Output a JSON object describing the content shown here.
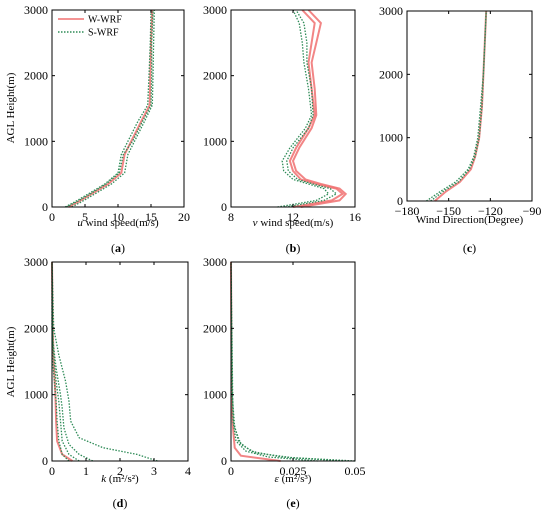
{
  "figure": {
    "legend": [
      {
        "name": "W-WRF",
        "color": "#f07070",
        "style": "solid"
      },
      {
        "name": "S-WRF",
        "color": "#2e8b57",
        "style": "dotted"
      }
    ],
    "ylabel_top": "AGL Height(m)",
    "ylabel_bottom": "AGL Height(m)"
  },
  "chart_data": [
    {
      "type": "line",
      "panel": "(a)",
      "xlabel_italic": "u",
      "xlabel_rest": " wind speed(m/s)",
      "xlim": [
        0,
        20
      ],
      "xticks": [
        "0",
        "5",
        "10",
        "15",
        "20"
      ],
      "ylim": [
        0,
        3000
      ],
      "yticks": [
        "0",
        "1000",
        "2000",
        "3000"
      ],
      "series": [
        {
          "name": "W-WRF",
          "points": [
            [
              2.5,
              0
            ],
            [
              4,
              80
            ],
            [
              6,
              200
            ],
            [
              8.5,
              350
            ],
            [
              10.5,
              520
            ],
            [
              11,
              800
            ],
            [
              12,
              1000
            ],
            [
              13.5,
              1300
            ],
            [
              14.8,
              1550
            ],
            [
              14.9,
              2000
            ],
            [
              15,
              2500
            ],
            [
              15.2,
              3000
            ]
          ]
        },
        {
          "name": "S-WRF",
          "points": [
            [
              2,
              0
            ],
            [
              3.5,
              80
            ],
            [
              5.5,
              200
            ],
            [
              8,
              350
            ],
            [
              10,
              520
            ],
            [
              10.5,
              800
            ],
            [
              11.5,
              1000
            ],
            [
              13,
              1300
            ],
            [
              14.5,
              1550
            ],
            [
              14.7,
              2000
            ],
            [
              14.9,
              2500
            ],
            [
              15,
              3000
            ]
          ]
        },
        {
          "name": "S-WRF",
          "points": [
            [
              3,
              0
            ],
            [
              4.5,
              80
            ],
            [
              6.5,
              200
            ],
            [
              9,
              350
            ],
            [
              11,
              520
            ],
            [
              11.5,
              800
            ],
            [
              12.5,
              1000
            ],
            [
              14,
              1300
            ],
            [
              15.2,
              1550
            ],
            [
              15.3,
              2000
            ],
            [
              15.4,
              2500
            ],
            [
              15.5,
              3000
            ]
          ]
        },
        {
          "name": "S-WRF",
          "points": [
            [
              2.2,
              0
            ],
            [
              3.8,
              80
            ],
            [
              5.8,
              200
            ],
            [
              8.2,
              350
            ],
            [
              10.2,
              520
            ],
            [
              10.8,
              800
            ],
            [
              12.2,
              1000
            ],
            [
              13.7,
              1300
            ],
            [
              15,
              1550
            ],
            [
              15.1,
              2000
            ],
            [
              15.1,
              2500
            ],
            [
              15.3,
              3000
            ]
          ]
        }
      ]
    },
    {
      "type": "line",
      "panel": "(b)",
      "xlabel_italic": "v",
      "xlabel_rest": " wind speed(m/s)",
      "xlim": [
        8,
        16
      ],
      "xticks": [
        "8",
        "12",
        "16"
      ],
      "ylim": [
        0,
        3000
      ],
      "yticks": [
        "0",
        "1000",
        "2000",
        "3000"
      ],
      "series": [
        {
          "name": "W-WRF",
          "points": [
            [
              12,
              0
            ],
            [
              13,
              40
            ],
            [
              14.5,
              100
            ],
            [
              15.2,
              200
            ],
            [
              14.8,
              280
            ],
            [
              13.5,
              350
            ],
            [
              12.5,
              420
            ],
            [
              12,
              550
            ],
            [
              11.8,
              700
            ],
            [
              12.2,
              900
            ],
            [
              13,
              1200
            ],
            [
              13.4,
              1400
            ],
            [
              13.2,
              1800
            ],
            [
              13,
              2200
            ],
            [
              13.2,
              2500
            ],
            [
              13.4,
              2800
            ],
            [
              12.6,
              3000
            ]
          ]
        },
        {
          "name": "W-WRF",
          "points": [
            [
              12.5,
              0
            ],
            [
              13.5,
              40
            ],
            [
              15,
              100
            ],
            [
              15.4,
              200
            ],
            [
              15,
              280
            ],
            [
              13.8,
              350
            ],
            [
              12.8,
              420
            ],
            [
              12.2,
              550
            ],
            [
              12,
              700
            ],
            [
              12.4,
              900
            ],
            [
              13.2,
              1200
            ],
            [
              13.5,
              1400
            ],
            [
              13.4,
              1800
            ],
            [
              13.2,
              2200
            ],
            [
              13.5,
              2500
            ],
            [
              13.8,
              2800
            ],
            [
              13,
              3000
            ]
          ]
        },
        {
          "name": "S-WRF",
          "points": [
            [
              11,
              0
            ],
            [
              12,
              40
            ],
            [
              13.5,
              100
            ],
            [
              14.3,
              200
            ],
            [
              14,
              280
            ],
            [
              13,
              350
            ],
            [
              12,
              420
            ],
            [
              11.4,
              550
            ],
            [
              11.3,
              700
            ],
            [
              11.8,
              900
            ],
            [
              12.8,
              1200
            ],
            [
              13.2,
              1400
            ],
            [
              13,
              1800
            ],
            [
              12.7,
              2200
            ],
            [
              12.6,
              2500
            ],
            [
              12.4,
              2800
            ],
            [
              12,
              3000
            ]
          ]
        },
        {
          "name": "S-WRF",
          "points": [
            [
              11.5,
              0
            ],
            [
              12.5,
              40
            ],
            [
              14,
              100
            ],
            [
              14.8,
              200
            ],
            [
              14.4,
              280
            ],
            [
              13.3,
              350
            ],
            [
              12.3,
              420
            ],
            [
              11.7,
              550
            ],
            [
              11.6,
              700
            ],
            [
              12,
              900
            ],
            [
              13,
              1200
            ],
            [
              13.3,
              1400
            ],
            [
              13.2,
              1800
            ],
            [
              12.9,
              2200
            ],
            [
              12.9,
              2500
            ],
            [
              12.7,
              2800
            ],
            [
              12.2,
              3000
            ]
          ]
        }
      ]
    },
    {
      "type": "line",
      "panel": "(c)",
      "xlabel_italic": "",
      "xlabel_rest": "Wind Direction(Degree)",
      "xlim": [
        -180,
        -90
      ],
      "xticks": [
        "−180",
        "−150",
        "−120",
        "−90"
      ],
      "ylim": [
        0,
        3000
      ],
      "yticks": [
        "0",
        "1000",
        "2000",
        "3000"
      ],
      "series": [
        {
          "name": "W-WRF",
          "points": [
            [
              -160,
              0
            ],
            [
              -152,
              150
            ],
            [
              -142,
              300
            ],
            [
              -134,
              500
            ],
            [
              -131,
              700
            ],
            [
              -128,
              1000
            ],
            [
              -126,
              1500
            ],
            [
              -125,
              2000
            ],
            [
              -124,
              2500
            ],
            [
              -123,
              3000
            ]
          ]
        },
        {
          "name": "S-WRF",
          "points": [
            [
              -163,
              0
            ],
            [
              -154,
              150
            ],
            [
              -143,
              300
            ],
            [
              -135,
              500
            ],
            [
              -131,
              700
            ],
            [
              -128,
              1000
            ],
            [
              -126,
              1500
            ],
            [
              -125,
              2000
            ],
            [
              -124,
              2500
            ],
            [
              -123,
              3000
            ]
          ]
        },
        {
          "name": "S-WRF",
          "points": [
            [
              -166,
              0
            ],
            [
              -156,
              150
            ],
            [
              -145,
              300
            ],
            [
              -136,
              500
            ],
            [
              -132,
              700
            ],
            [
              -129,
              1000
            ],
            [
              -127,
              1500
            ],
            [
              -125,
              2000
            ],
            [
              -124,
              2500
            ],
            [
              -123,
              3000
            ]
          ]
        }
      ]
    },
    {
      "type": "line",
      "panel": "(d)",
      "xlabel_italic": "k",
      "xlabel_rest": " (m²/s²)",
      "xlim": [
        0,
        4
      ],
      "xticks": [
        "0",
        "1",
        "2",
        "3",
        "4"
      ],
      "ylim": [
        0,
        3000
      ],
      "yticks": [
        "0",
        "1000",
        "2000",
        "3000"
      ],
      "series": [
        {
          "name": "W-WRF",
          "points": [
            [
              0.6,
              0
            ],
            [
              0.3,
              100
            ],
            [
              0.15,
              300
            ],
            [
              0.12,
              600
            ],
            [
              0.1,
              1000
            ],
            [
              0.05,
              1500
            ],
            [
              0.02,
              2000
            ],
            [
              0,
              3000
            ]
          ]
        },
        {
          "name": "S-WRF",
          "points": [
            [
              3.1,
              0
            ],
            [
              2.5,
              100
            ],
            [
              1.5,
              200
            ],
            [
              0.8,
              350
            ],
            [
              0.55,
              600
            ],
            [
              0.5,
              900
            ],
            [
              0.4,
              1200
            ],
            [
              0.2,
              1600
            ],
            [
              0.05,
              2000
            ],
            [
              0,
              3000
            ]
          ]
        },
        {
          "name": "S-WRF",
          "points": [
            [
              1.2,
              0
            ],
            [
              0.8,
              100
            ],
            [
              0.5,
              250
            ],
            [
              0.35,
              500
            ],
            [
              0.3,
              800
            ],
            [
              0.25,
              1000
            ],
            [
              0.12,
              1400
            ],
            [
              0.03,
              1800
            ],
            [
              0,
              3000
            ]
          ]
        },
        {
          "name": "S-WRF",
          "points": [
            [
              0.8,
              0
            ],
            [
              0.5,
              100
            ],
            [
              0.3,
              300
            ],
            [
              0.25,
              600
            ],
            [
              0.2,
              900
            ],
            [
              0.12,
              1200
            ],
            [
              0.05,
              1600
            ],
            [
              0,
              2000
            ],
            [
              0,
              3000
            ]
          ]
        },
        {
          "name": "S-WRF",
          "points": [
            [
              0.5,
              0
            ],
            [
              0.3,
              100
            ],
            [
              0.2,
              300
            ],
            [
              0.15,
              600
            ],
            [
              0.12,
              900
            ],
            [
              0.07,
              1200
            ],
            [
              0.02,
              1500
            ],
            [
              0,
              3000
            ]
          ]
        }
      ]
    },
    {
      "type": "line",
      "panel": "(e)",
      "xlabel_italic": "ε",
      "xlabel_rest": " (m²/s³)",
      "xlim": [
        0,
        0.05
      ],
      "xticks": [
        "0",
        "0.025",
        "0.05"
      ],
      "ylim": [
        0,
        3000
      ],
      "yticks": [
        "0",
        "1000",
        "2000",
        "3000"
      ],
      "series": [
        {
          "name": "W-WRF",
          "points": [
            [
              0.02,
              0
            ],
            [
              0.004,
              80
            ],
            [
              0.0015,
              200
            ],
            [
              0.0008,
              500
            ],
            [
              0.0003,
              1000
            ],
            [
              0,
              3000
            ]
          ]
        },
        {
          "name": "S-WRF",
          "points": [
            [
              0.05,
              0
            ],
            [
              0.025,
              50
            ],
            [
              0.01,
              120
            ],
            [
              0.004,
              250
            ],
            [
              0.0015,
              500
            ],
            [
              0.0005,
              1000
            ],
            [
              0,
              3000
            ]
          ]
        },
        {
          "name": "S-WRF",
          "points": [
            [
              0.045,
              0
            ],
            [
              0.02,
              60
            ],
            [
              0.008,
              150
            ],
            [
              0.003,
              300
            ],
            [
              0.001,
              600
            ],
            [
              0.0003,
              1200
            ],
            [
              0,
              3000
            ]
          ]
        },
        {
          "name": "S-WRF",
          "points": [
            [
              0.035,
              0
            ],
            [
              0.015,
              60
            ],
            [
              0.006,
              150
            ],
            [
              0.002,
              300
            ],
            [
              0.0008,
              600
            ],
            [
              0,
              3000
            ]
          ]
        }
      ]
    }
  ]
}
